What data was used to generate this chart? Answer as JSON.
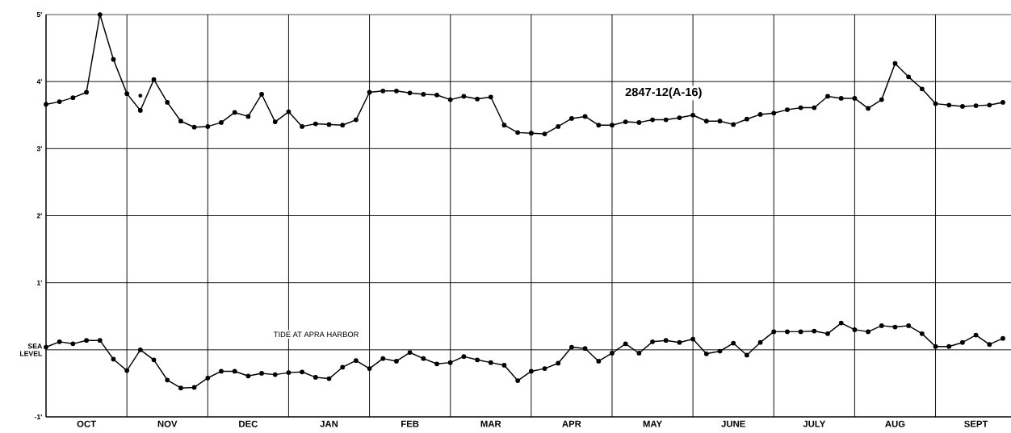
{
  "chart_data": {
    "type": "line",
    "categories": [
      null,
      null,
      null,
      "OCT",
      null,
      null,
      null,
      null,
      null,
      "NOV",
      null,
      null,
      null,
      null,
      null,
      "DEC",
      null,
      null,
      null,
      null,
      null,
      "JAN",
      null,
      null,
      null,
      null,
      null,
      "FEB",
      null,
      null,
      null,
      null,
      null,
      "MAR",
      null,
      null,
      null,
      null,
      null,
      "APR",
      null,
      null,
      null,
      null,
      null,
      "MAY",
      null,
      null,
      null,
      null,
      null,
      "JUNE",
      null,
      null,
      null,
      null,
      null,
      "JULY",
      null,
      null,
      null,
      null,
      null,
      "AUG",
      null,
      null,
      null,
      null,
      null,
      "SEPT",
      null,
      null
    ],
    "series": [
      {
        "name": "2847-12(A-16)",
        "color": "#000000",
        "values": [
          3.66,
          3.7,
          3.76,
          3.84,
          5.0,
          4.33,
          3.82,
          3.57,
          4.03,
          3.69,
          3.41,
          3.32,
          3.33,
          3.39,
          3.54,
          3.48,
          3.81,
          3.4,
          3.55,
          3.33,
          3.37,
          3.36,
          3.35,
          3.43,
          3.84,
          3.86,
          3.86,
          3.83,
          3.81,
          3.8,
          3.73,
          3.78,
          3.74,
          3.77,
          3.35,
          3.24,
          3.23,
          3.22,
          3.33,
          3.45,
          3.48,
          3.35,
          3.35,
          3.4,
          3.39,
          3.43,
          3.43,
          3.46,
          3.5,
          3.41,
          3.41,
          3.36,
          3.44,
          3.51,
          3.53,
          3.58,
          3.61,
          3.61,
          3.78,
          3.75,
          3.75,
          3.6,
          3.73,
          4.27,
          4.07,
          3.89,
          3.67,
          3.65,
          3.63,
          3.64,
          3.65,
          3.69
        ]
      },
      {
        "type": "scatter",
        "color": "#000000",
        "values": [
          null,
          null,
          null,
          null,
          null,
          null,
          null,
          3.79,
          null,
          null,
          null,
          null,
          null,
          null,
          null,
          null,
          null,
          null,
          null,
          null,
          null,
          null,
          null,
          null,
          null,
          null,
          null,
          null,
          null,
          null,
          null,
          null,
          null,
          null,
          null,
          null,
          null,
          null,
          null,
          null,
          null,
          null,
          null,
          null,
          null,
          null,
          null,
          null,
          null,
          null,
          null,
          null,
          null,
          null,
          null,
          null,
          null,
          null,
          null,
          null,
          null,
          null,
          null,
          null,
          null,
          null,
          null,
          null,
          null,
          null,
          null,
          null
        ]
      },
      {
        "name": "TIDE AT APRA HARBOR",
        "color": "#000000",
        "values": [
          0.04,
          0.12,
          0.09,
          0.14,
          0.14,
          -0.14,
          -0.31,
          0.0,
          -0.15,
          -0.45,
          -0.57,
          -0.56,
          -0.42,
          -0.32,
          -0.32,
          -0.39,
          -0.35,
          -0.37,
          -0.34,
          -0.33,
          -0.41,
          -0.43,
          -0.26,
          -0.16,
          -0.28,
          -0.13,
          -0.17,
          -0.04,
          -0.13,
          -0.21,
          -0.19,
          -0.1,
          -0.15,
          -0.19,
          -0.23,
          -0.46,
          -0.32,
          -0.28,
          -0.2,
          0.04,
          0.02,
          -0.17,
          -0.05,
          0.09,
          -0.05,
          0.12,
          0.14,
          0.11,
          0.16,
          -0.06,
          -0.02,
          0.1,
          -0.08,
          0.11,
          0.27,
          0.27,
          0.27,
          0.28,
          0.24,
          0.4,
          0.3,
          0.27,
          0.36,
          0.34,
          0.36,
          0.24,
          0.05,
          0.05,
          0.11,
          0.22,
          0.08,
          0.17
        ]
      }
    ],
    "ylim": [
      -1,
      5
    ],
    "yticks": [
      {
        "value": -1,
        "label": "-1'"
      },
      {
        "value": 0,
        "label": "SEA LEVEL"
      },
      {
        "value": 1,
        "label": "1'"
      },
      {
        "value": 2,
        "label": "2'"
      },
      {
        "value": 3,
        "label": "3'"
      },
      {
        "value": 4,
        "label": "4'"
      },
      {
        "value": 5,
        "label": "5'"
      }
    ],
    "grid": true,
    "marker": "circle",
    "line_style": "solid"
  }
}
